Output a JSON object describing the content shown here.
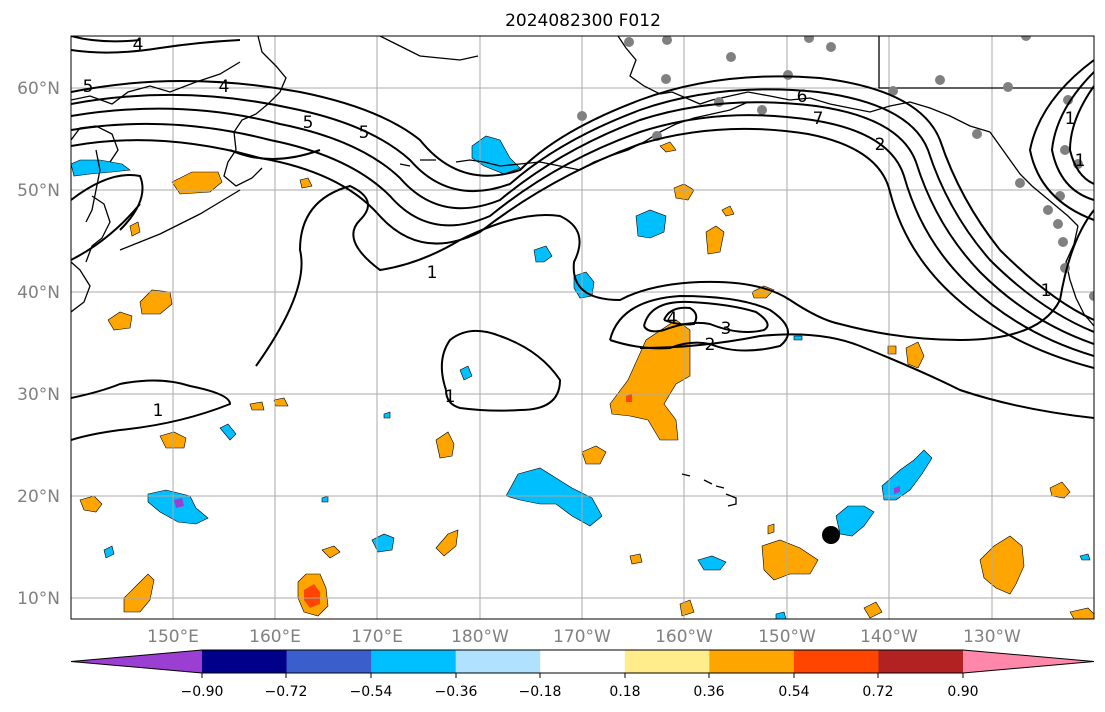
{
  "title": "2024082300 F012",
  "map": {
    "lon_labels": [
      "150°E",
      "160°E",
      "170°E",
      "180°W",
      "170°W",
      "160°W",
      "150°W",
      "140°W",
      "130°W"
    ],
    "lat_labels": [
      "60°N",
      "50°N",
      "40°N",
      "30°N",
      "20°N",
      "10°N"
    ],
    "grid": true,
    "contour_labels": [
      "4",
      "5",
      "4",
      "5",
      "5",
      "6",
      "7",
      "2",
      "1",
      "1",
      "1",
      "2",
      "3",
      "4",
      "1",
      "1",
      "1"
    ],
    "colors": {
      "contour": "#000000",
      "grid": "#aaaaaa",
      "coast": "#000000",
      "station": "#808080",
      "marker": "#000000"
    }
  },
  "colorbar": {
    "ticks": [
      "−0.90",
      "−0.72",
      "−0.54",
      "−0.36",
      "−0.18",
      "0.18",
      "0.36",
      "0.54",
      "0.72",
      "0.90"
    ],
    "colors": [
      "#9a3fd1",
      "#00008b",
      "#3a5fcd",
      "#00bfff",
      "#b0e2ff",
      "#ffffff",
      "#ffec8b",
      "#ffa500",
      "#ff4500",
      "#b22222",
      "#ff88aa"
    ]
  }
}
